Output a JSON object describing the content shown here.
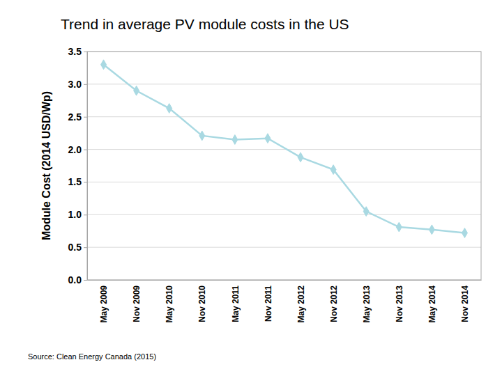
{
  "chart_data": {
    "type": "line",
    "title": "Trend in average PV module costs in the US",
    "y_label": "Module Cost (2014 USD/Wp)",
    "source": "Source: Clean Energy Canada (2015)",
    "categories": [
      "May 2009",
      "Nov 2009",
      "May 2010",
      "Nov 2010",
      "May 2011",
      "Nov 2011",
      "May 2012",
      "Nov 2012",
      "May 2013",
      "Nov 2013",
      "May 2014",
      "Nov 2014"
    ],
    "values": [
      3.3,
      2.9,
      2.63,
      2.21,
      2.15,
      2.17,
      1.88,
      1.69,
      1.05,
      0.81,
      0.77,
      0.72
    ],
    "color": "#a9d9e2",
    "marker": "diamond",
    "ylim": [
      0,
      3.5
    ],
    "yticks": [
      {
        "value": 0,
        "label": "0.0"
      },
      0.5,
      {
        "value": 1,
        "label": "1.0"
      },
      1.5,
      {
        "value": 2,
        "label": "2.0"
      },
      2.5,
      {
        "value": 3,
        "label": "3.0"
      },
      3.5
    ],
    "grid": true
  }
}
